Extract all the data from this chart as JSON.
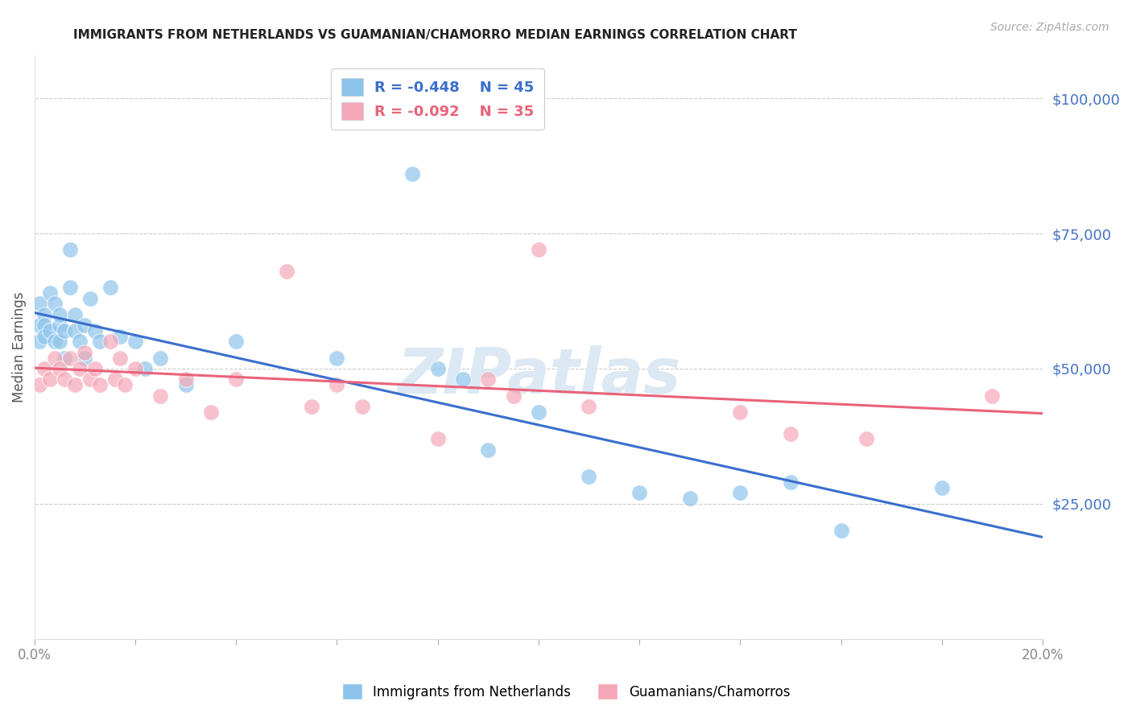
{
  "title": "IMMIGRANTS FROM NETHERLANDS VS GUAMANIAN/CHAMORRO MEDIAN EARNINGS CORRELATION CHART",
  "source": "Source: ZipAtlas.com",
  "ylabel": "Median Earnings",
  "yticks": [
    0,
    25000,
    50000,
    75000,
    100000
  ],
  "ytick_labels": [
    "",
    "$25,000",
    "$50,000",
    "$75,000",
    "$100,000"
  ],
  "xlim": [
    0.0,
    0.2
  ],
  "ylim": [
    0,
    108000
  ],
  "legend1_r": "-0.448",
  "legend1_n": "45",
  "legend2_r": "-0.092",
  "legend2_n": "35",
  "blue_color": "#8DC4EC",
  "pink_color": "#F4A8B8",
  "blue_line_color": "#3A6FCC",
  "pink_line_color": "#E8637A",
  "watermark": "ZIPatlas",
  "blue_x": [
    0.001,
    0.001,
    0.001,
    0.002,
    0.002,
    0.002,
    0.003,
    0.003,
    0.004,
    0.004,
    0.005,
    0.005,
    0.005,
    0.006,
    0.006,
    0.007,
    0.007,
    0.008,
    0.008,
    0.009,
    0.01,
    0.01,
    0.011,
    0.012,
    0.013,
    0.015,
    0.017,
    0.02,
    0.022,
    0.025,
    0.03,
    0.04,
    0.06,
    0.075,
    0.08,
    0.085,
    0.09,
    0.1,
    0.11,
    0.12,
    0.13,
    0.14,
    0.15,
    0.16,
    0.18
  ],
  "blue_y": [
    62000,
    58000,
    55000,
    60000,
    58000,
    56000,
    64000,
    57000,
    62000,
    55000,
    58000,
    60000,
    55000,
    57000,
    52000,
    65000,
    72000,
    60000,
    57000,
    55000,
    58000,
    52000,
    63000,
    57000,
    55000,
    65000,
    56000,
    55000,
    50000,
    52000,
    47000,
    55000,
    52000,
    86000,
    50000,
    48000,
    35000,
    42000,
    30000,
    27000,
    26000,
    27000,
    29000,
    20000,
    28000
  ],
  "pink_x": [
    0.001,
    0.002,
    0.003,
    0.004,
    0.005,
    0.006,
    0.007,
    0.008,
    0.009,
    0.01,
    0.011,
    0.012,
    0.013,
    0.015,
    0.016,
    0.017,
    0.018,
    0.02,
    0.025,
    0.03,
    0.035,
    0.04,
    0.05,
    0.055,
    0.06,
    0.065,
    0.08,
    0.09,
    0.095,
    0.1,
    0.11,
    0.14,
    0.15,
    0.165,
    0.19
  ],
  "pink_y": [
    47000,
    50000,
    48000,
    52000,
    50000,
    48000,
    52000,
    47000,
    50000,
    53000,
    48000,
    50000,
    47000,
    55000,
    48000,
    52000,
    47000,
    50000,
    45000,
    48000,
    42000,
    48000,
    68000,
    43000,
    47000,
    43000,
    37000,
    48000,
    45000,
    72000,
    43000,
    42000,
    38000,
    37000,
    45000
  ]
}
